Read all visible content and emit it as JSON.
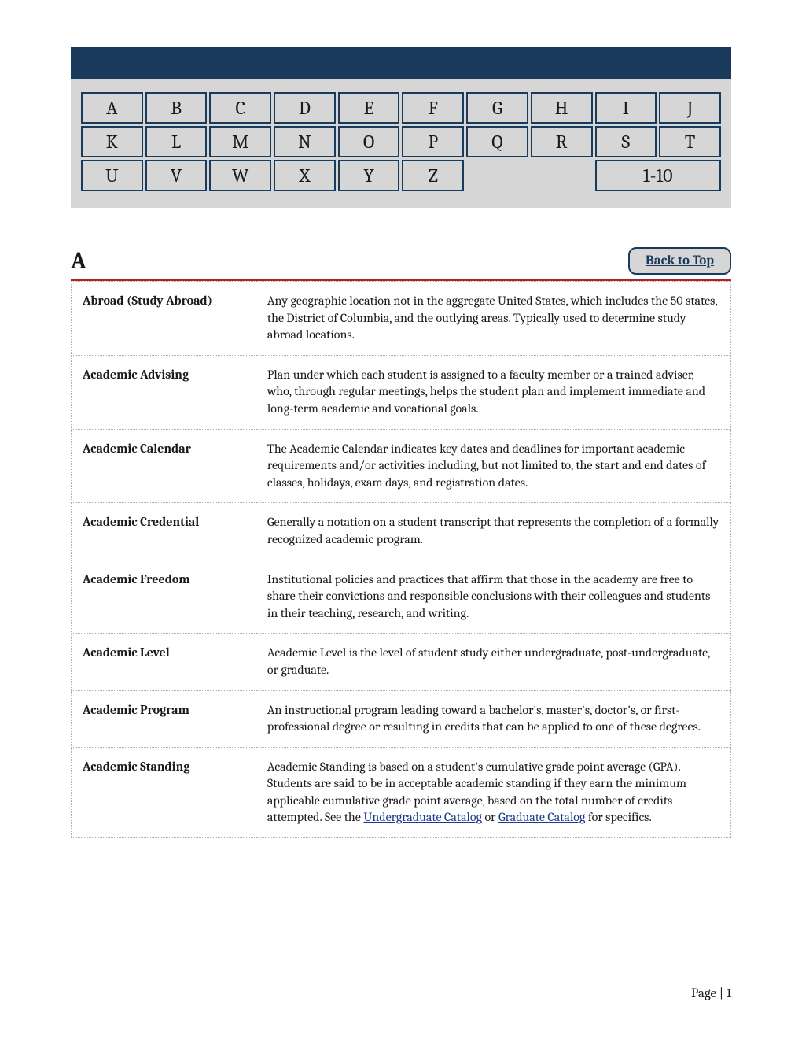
{
  "colors": {
    "header_bg": "#1a3a5c",
    "nav_bg": "#d6d6d6",
    "cell_border": "#1a3a5c",
    "rule": "#b22222",
    "dotted_border": "#b0b0b0",
    "link": "#1a3a8c",
    "text": "#1a1a1a",
    "page_bg": "#ffffff"
  },
  "fonts": {
    "body_family": "Cambria, Georgia, serif",
    "nav_size_pt": 18,
    "section_letter_pt": 22,
    "body_pt": 12
  },
  "alpha_nav": {
    "rows": [
      [
        "A",
        "B",
        "C",
        "D",
        "E",
        "F",
        "G",
        "H",
        "I",
        "J"
      ],
      [
        "K",
        "L",
        "M",
        "N",
        "O",
        "P",
        "Q",
        "R",
        "S",
        "T"
      ],
      [
        "U",
        "V",
        "W",
        "X",
        "Y",
        "Z",
        "",
        "1-10"
      ]
    ],
    "numeric_label": "1-10"
  },
  "section": {
    "letter": "A",
    "back_to_top": "Back to Top"
  },
  "definitions": [
    {
      "term": "Abroad (Study Abroad)",
      "def": "Any geographic location not in the aggregate United States, which includes the 50 states, the District of Columbia, and the outlying areas.  Typically used to determine study abroad locations."
    },
    {
      "term": "Academic Advising",
      "def": "Plan under which each student is assigned to a faculty member or a trained adviser, who, through regular meetings, helps the student plan and implement immediate and long-term academic and vocational goals."
    },
    {
      "term": "Academic Calendar",
      "def": "The Academic Calendar indicates key dates and deadlines for important academic requirements and/or activities including, but not limited to, the start and end dates of classes, holidays, exam days, and registration dates."
    },
    {
      "term": "Academic Credential",
      "def": "Generally a notation on a student transcript that represents the completion of a formally recognized academic program."
    },
    {
      "term": "Academic Freedom",
      "def": "Institutional policies and practices that affirm that those in the academy are free to share their convictions and responsible conclusions with their colleagues and students in their teaching, research, and writing."
    },
    {
      "term": "Academic Level",
      "def": "Academic Level is the level of student study either undergraduate, post-undergraduate, or graduate."
    },
    {
      "term": "Academic Program",
      "def": "An instructional program leading toward a bachelor's, master's, doctor's, or first-professional degree or resulting in credits that can be applied to one of these degrees."
    },
    {
      "term": "Academic Standing",
      "def_pre": "Academic Standing is based on a student's cumulative grade point average (GPA).  Students are said to be in acceptable academic standing if they earn the minimum applicable cumulative grade point average, based on the total number of credits attempted.  See the ",
      "link1": "Undergraduate Catalog",
      "mid": " or ",
      "link2": "Graduate Catalog",
      "def_post": " for specifics."
    }
  ],
  "footer": {
    "label": "Page | 1",
    "page_number": 1
  }
}
